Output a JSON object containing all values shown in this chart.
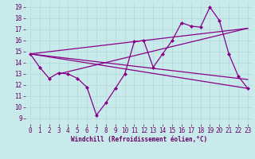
{
  "background_color": "#c8eaea",
  "line_color": "#880088",
  "xlabel": "Windchill (Refroidissement éolien,°C)",
  "xlim": [
    -0.5,
    23.5
  ],
  "ylim": [
    8.5,
    19.5
  ],
  "yticks": [
    9,
    10,
    11,
    12,
    13,
    14,
    15,
    16,
    17,
    18,
    19
  ],
  "xticks": [
    0,
    1,
    2,
    3,
    4,
    5,
    6,
    7,
    8,
    9,
    10,
    11,
    12,
    13,
    14,
    15,
    16,
    17,
    18,
    19,
    20,
    21,
    22,
    23
  ],
  "main_x": [
    0,
    1,
    2,
    3,
    4,
    5,
    6,
    7,
    8,
    9,
    10,
    11,
    12,
    13,
    14,
    15,
    16,
    17,
    18,
    19,
    20,
    21,
    22,
    23
  ],
  "main_y": [
    14.8,
    13.6,
    12.6,
    13.1,
    13.0,
    12.6,
    11.8,
    9.3,
    10.4,
    11.7,
    13.0,
    15.9,
    16.0,
    13.6,
    14.8,
    16.0,
    17.6,
    17.3,
    17.2,
    19.0,
    17.8,
    14.8,
    12.8,
    11.7
  ],
  "trend_lines": [
    {
      "x": [
        0,
        23
      ],
      "y": [
        14.8,
        11.7
      ]
    },
    {
      "x": [
        0,
        23
      ],
      "y": [
        14.8,
        17.1
      ]
    },
    {
      "x": [
        0,
        23
      ],
      "y": [
        14.8,
        12.5
      ]
    },
    {
      "x": [
        3,
        23
      ],
      "y": [
        13.0,
        17.1
      ]
    }
  ],
  "xlabel_fontsize": 5.5,
  "tick_fontsize": 5.5,
  "grid_color": "#aad4d4",
  "tick_color": "#660066",
  "line_width": 0.9,
  "marker_size": 2.5
}
